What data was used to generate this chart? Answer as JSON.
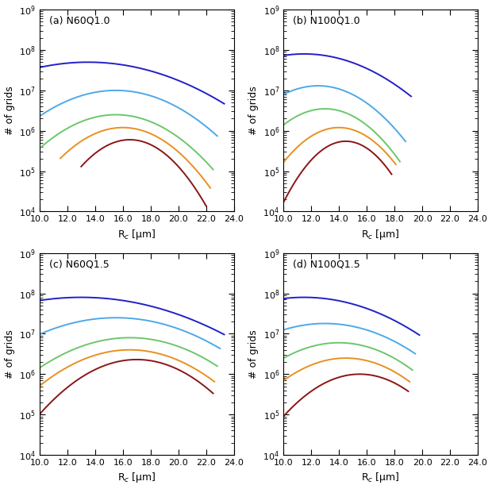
{
  "panels": [
    {
      "label": "(a) N60Q1.0",
      "curves": [
        {
          "mu": 13.5,
          "sigma": 4.5,
          "scale": 50000000.0,
          "x_min": 10.0,
          "x_max": 23.3
        },
        {
          "mu": 15.5,
          "sigma": 3.2,
          "scale": 10000000.0,
          "x_min": 10.0,
          "x_max": 22.8
        },
        {
          "mu": 15.5,
          "sigma": 2.8,
          "scale": 2500000.0,
          "x_min": 10.0,
          "x_max": 22.5
        },
        {
          "mu": 16.0,
          "sigma": 2.4,
          "scale": 1200000.0,
          "x_min": 11.5,
          "x_max": 22.3
        },
        {
          "mu": 16.5,
          "sigma": 2.0,
          "scale": 600000.0,
          "x_min": 13.0,
          "x_max": 22.0
        }
      ]
    },
    {
      "label": "(b) N100Q1.0",
      "curves": [
        {
          "mu": 11.5,
          "sigma": 3.5,
          "scale": 80000000.0,
          "x_min": 10.0,
          "x_max": 19.2
        },
        {
          "mu": 12.5,
          "sigma": 2.5,
          "scale": 13000000.0,
          "x_min": 10.0,
          "x_max": 18.8
        },
        {
          "mu": 13.0,
          "sigma": 2.2,
          "scale": 3500000.0,
          "x_min": 10.0,
          "x_max": 18.4
        },
        {
          "mu": 14.0,
          "sigma": 2.0,
          "scale": 1200000.0,
          "x_min": 10.0,
          "x_max": 18.1
        },
        {
          "mu": 14.5,
          "sigma": 1.7,
          "scale": 550000.0,
          "x_min": 10.0,
          "x_max": 17.8
        }
      ]
    },
    {
      "label": "(c) N60Q1.5",
      "curves": [
        {
          "mu": 13.0,
          "sigma": 5.0,
          "scale": 80000000.0,
          "x_min": 10.0,
          "x_max": 23.3
        },
        {
          "mu": 15.5,
          "sigma": 4.0,
          "scale": 25000000.0,
          "x_min": 10.0,
          "x_max": 23.0
        },
        {
          "mu": 16.5,
          "sigma": 3.5,
          "scale": 8000000.0,
          "x_min": 10.0,
          "x_max": 22.8
        },
        {
          "mu": 16.5,
          "sigma": 3.2,
          "scale": 4000000.0,
          "x_min": 10.0,
          "x_max": 22.6
        },
        {
          "mu": 17.0,
          "sigma": 2.8,
          "scale": 2300000.0,
          "x_min": 10.0,
          "x_max": 22.5
        }
      ]
    },
    {
      "label": "(d) N100Q1.5",
      "curves": [
        {
          "mu": 11.5,
          "sigma": 4.0,
          "scale": 80000000.0,
          "x_min": 10.0,
          "x_max": 19.8
        },
        {
          "mu": 13.0,
          "sigma": 3.5,
          "scale": 18000000.0,
          "x_min": 10.0,
          "x_max": 19.5
        },
        {
          "mu": 14.0,
          "sigma": 3.0,
          "scale": 6000000.0,
          "x_min": 10.0,
          "x_max": 19.3
        },
        {
          "mu": 14.5,
          "sigma": 2.8,
          "scale": 2500000.0,
          "x_min": 10.0,
          "x_max": 19.1
        },
        {
          "mu": 15.5,
          "sigma": 2.5,
          "scale": 1000000.0,
          "x_min": 10.0,
          "x_max": 19.0
        }
      ]
    }
  ],
  "colors": [
    "#2020C8",
    "#4DA8E8",
    "#6AC76A",
    "#E89020",
    "#8B1515"
  ],
  "xlim": [
    10.0,
    24.0
  ],
  "ylim_min": 10000.0,
  "ylim_max": 1000000000.0,
  "xlabel": "R$_c$ [μm]",
  "ylabel": "# of grids",
  "xticks": [
    10.0,
    12.0,
    14.0,
    16.0,
    18.0,
    20.0,
    22.0,
    24.0
  ],
  "xtick_labels": [
    "10.0",
    "12.0",
    "14.0",
    "16.0",
    "18.0",
    "20.0",
    "22.0",
    "24.0"
  ],
  "linewidth": 1.4
}
